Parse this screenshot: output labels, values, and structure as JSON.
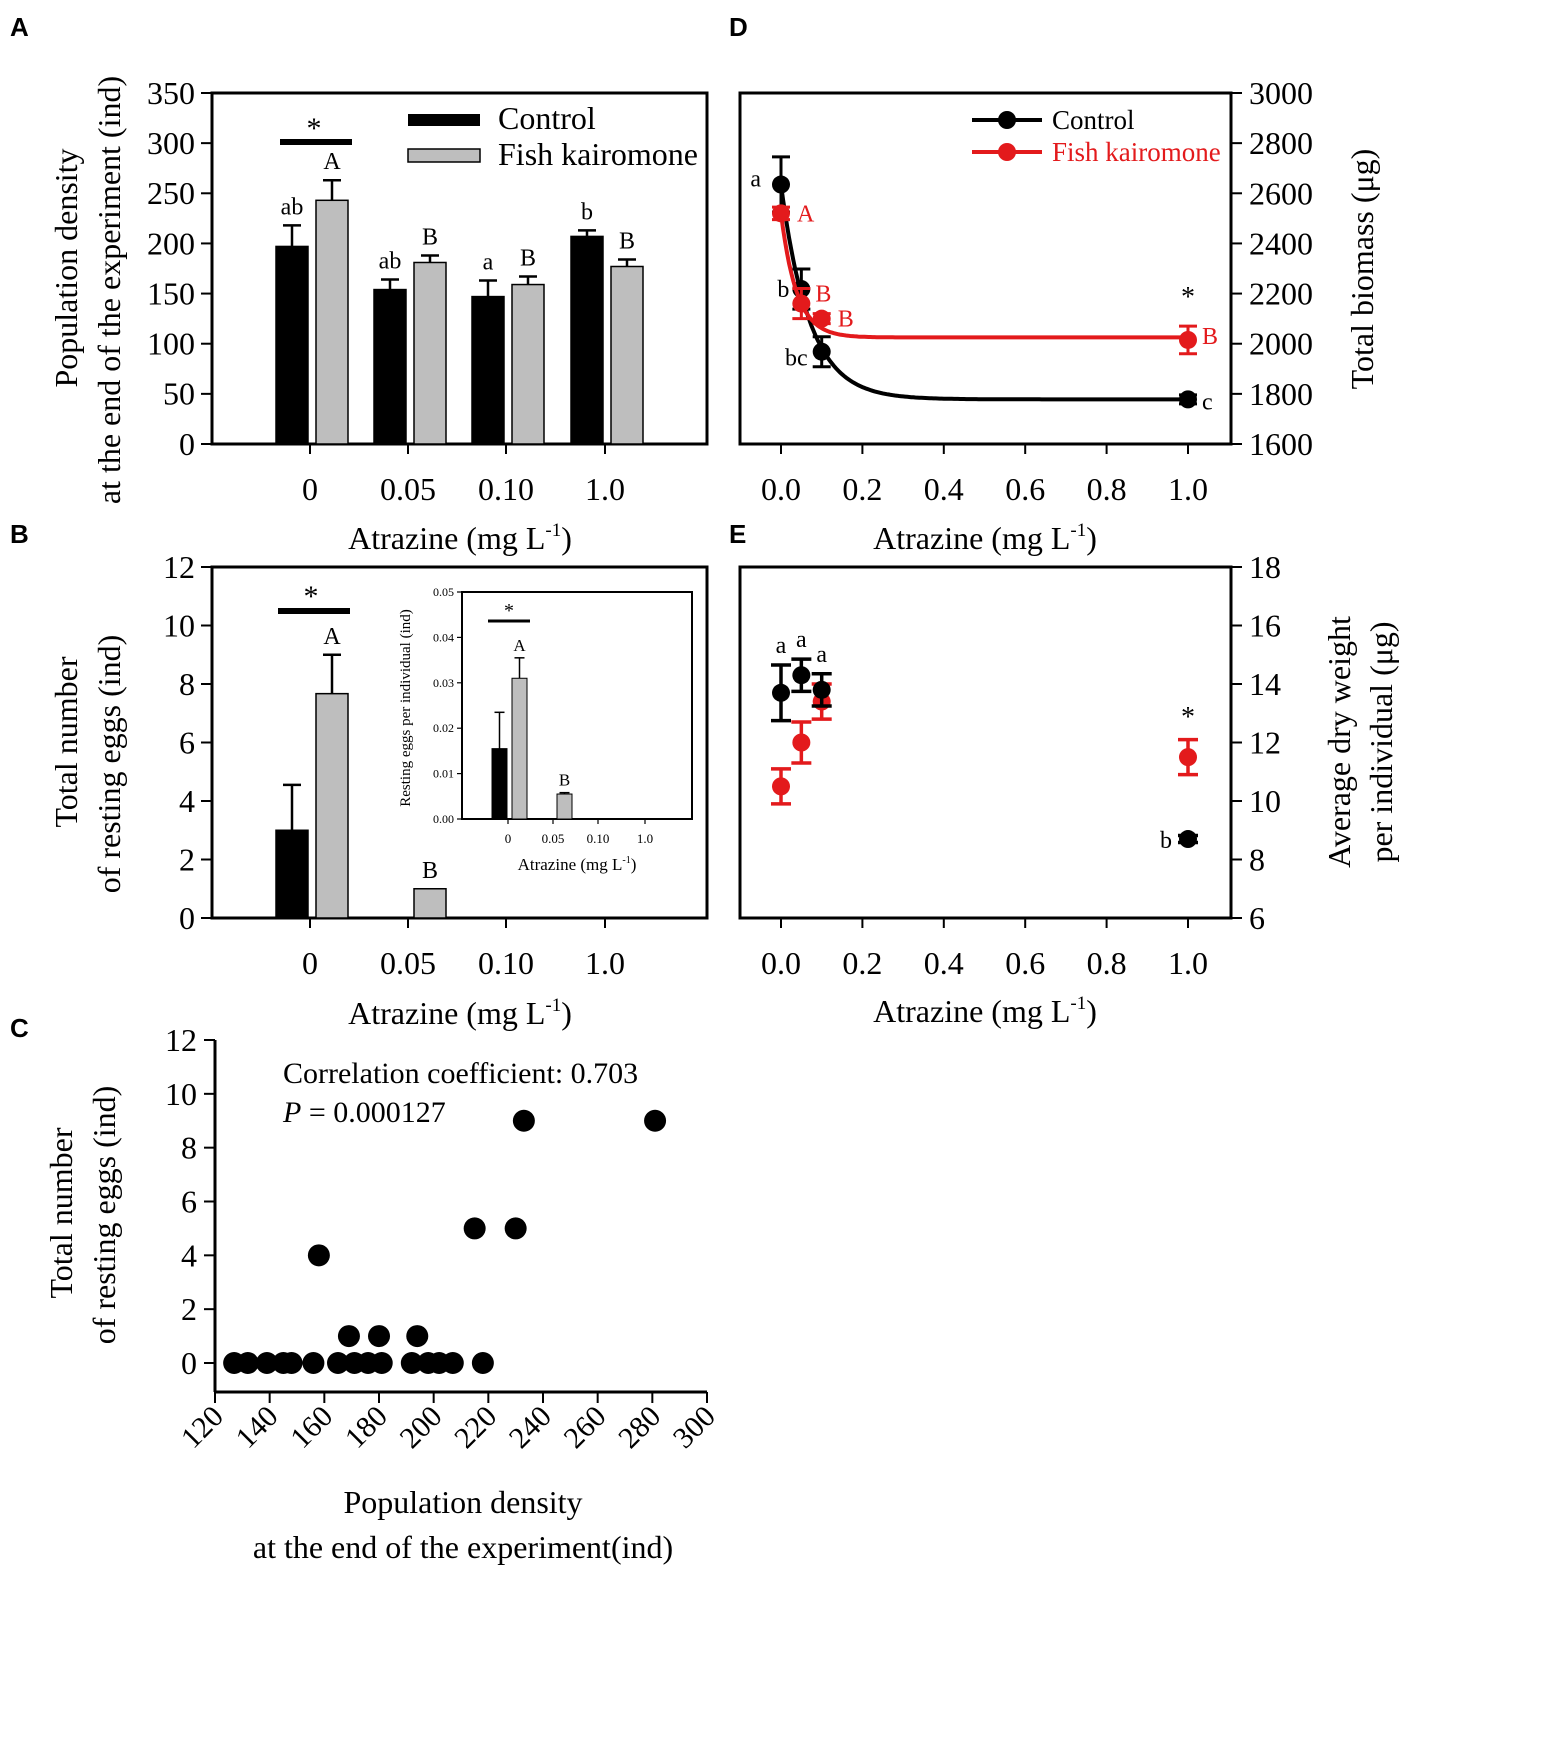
{
  "chart_data": [
    {
      "panel": "A",
      "type": "bar",
      "ylabel_line1": "Population density",
      "ylabel_line2": "at the end of the experiment (ind)",
      "xlabel_main": "Atrazine (mg L",
      "xlabel_sup": "-1",
      "xlabel_close": ")",
      "categories": [
        "0",
        "0.05",
        "0.10",
        "1.0"
      ],
      "ylim": [
        0,
        350
      ],
      "yticks": [
        "0",
        "50",
        "100",
        "150",
        "200",
        "250",
        "300",
        "350"
      ],
      "series": [
        {
          "name": "Control",
          "color": "#000000",
          "values": [
            197,
            154,
            147,
            207
          ],
          "errors": [
            21,
            10,
            16,
            6
          ],
          "letters": [
            "ab",
            "ab",
            "a",
            "b"
          ]
        },
        {
          "name": "Fish kairomone",
          "color": "#bebebe",
          "values": [
            243,
            181,
            159,
            177
          ],
          "errors": [
            20,
            7,
            8,
            7
          ],
          "letters": [
            "A",
            "B",
            "B",
            "B"
          ]
        }
      ],
      "legend": [
        "Control",
        "Fish kairomone"
      ],
      "significance": [
        {
          "category": "0",
          "mark": "*"
        }
      ]
    },
    {
      "panel": "B",
      "type": "bar",
      "ylabel_line1": "Total number",
      "ylabel_line2": "of resting eggs (ind)",
      "xlabel_main": "Atrazine (mg L",
      "xlabel_sup": "-1",
      "xlabel_close": ")",
      "categories": [
        "0",
        "0.05",
        "0.10",
        "1.0"
      ],
      "ylim": [
        0,
        12
      ],
      "yticks": [
        "0",
        "2",
        "4",
        "6",
        "8",
        "10",
        "12"
      ],
      "series": [
        {
          "name": "Control",
          "color": "#000000",
          "values": [
            3,
            0,
            0,
            0
          ],
          "errors": [
            1.55,
            0,
            0,
            0
          ],
          "letters": [
            "",
            "",
            "",
            ""
          ]
        },
        {
          "name": "Fish kairomone",
          "color": "#bebebe",
          "values": [
            7.67,
            1,
            0,
            0
          ],
          "errors": [
            1.33,
            0,
            0,
            0
          ],
          "letters": [
            "A",
            "B",
            "",
            ""
          ]
        }
      ],
      "significance": [
        {
          "category": "0",
          "mark": "*"
        }
      ],
      "inset": {
        "type": "bar",
        "ylabel": "Resting eggs per individual (ind)",
        "xlabel_main": "Atrazine (mg L",
        "xlabel_sup": "-1",
        "xlabel_close": ")",
        "categories": [
          "0",
          "0.05",
          "0.10",
          "1.0"
        ],
        "ylim": [
          0,
          0.05
        ],
        "yticks": [
          "0.00",
          "0.01",
          "0.02",
          "0.03",
          "0.04",
          "0.05"
        ],
        "series": [
          {
            "name": "Control",
            "values": [
              0.0155,
              0,
              0,
              0
            ],
            "errors": [
              0.008,
              0,
              0,
              0
            ],
            "letters": [
              "",
              "",
              "",
              ""
            ]
          },
          {
            "name": "Fish kairomone",
            "values": [
              0.031,
              0.0055,
              0,
              0
            ],
            "errors": [
              0.0045,
              0.0003,
              0,
              0
            ],
            "letters": [
              "A",
              "B",
              "",
              ""
            ]
          }
        ],
        "significance": [
          {
            "category": "0",
            "mark": "*"
          }
        ]
      }
    },
    {
      "panel": "C",
      "type": "scatter",
      "ylabel_line1": "Total number",
      "ylabel_line2": "of resting eggs (ind)",
      "xlabel_line1": "Population density",
      "xlabel_line2": "at the end of the experiment(ind)",
      "xlim": [
        120,
        300
      ],
      "ylim": [
        0,
        12
      ],
      "xticks": [
        "120",
        "140",
        "160",
        "180",
        "200",
        "220",
        "240",
        "260",
        "280",
        "300"
      ],
      "yticks": [
        "0",
        "2",
        "4",
        "6",
        "8",
        "10",
        "12"
      ],
      "annotation_line1": "Correlation coefficient: 0.703",
      "annotation_p_symbol": "P",
      "annotation_p_value": " = 0.000127",
      "points": [
        [
          127,
          0
        ],
        [
          132,
          0
        ],
        [
          139,
          0
        ],
        [
          145,
          0
        ],
        [
          148,
          0
        ],
        [
          156,
          0
        ],
        [
          158,
          4
        ],
        [
          165,
          0
        ],
        [
          169,
          1
        ],
        [
          171,
          0
        ],
        [
          176,
          0
        ],
        [
          180,
          1
        ],
        [
          181,
          0
        ],
        [
          192,
          0
        ],
        [
          194,
          1
        ],
        [
          198,
          0
        ],
        [
          202,
          0
        ],
        [
          207,
          0
        ],
        [
          215,
          5
        ],
        [
          218,
          0
        ],
        [
          230,
          5
        ],
        [
          233,
          9
        ],
        [
          281,
          9
        ]
      ]
    },
    {
      "panel": "D",
      "type": "line",
      "ylabel": "Total biomass (μg)",
      "xlabel_main": "Atrazine (mg L",
      "xlabel_sup": "-1",
      "xlabel_close": ")",
      "xlim": [
        0,
        1
      ],
      "ylim": [
        1600,
        3000
      ],
      "xticks": [
        "0.0",
        "0.2",
        "0.4",
        "0.6",
        "0.8",
        "1.0"
      ],
      "yticks": [
        "1600",
        "1800",
        "2000",
        "2200",
        "2400",
        "2600",
        "2800",
        "3000"
      ],
      "legend": [
        "Control",
        "Fish kairomone"
      ],
      "series": [
        {
          "name": "Control",
          "color": "#000000",
          "x": [
            0,
            0.05,
            0.1,
            1.0
          ],
          "y": [
            2635,
            2218,
            1968,
            1778
          ],
          "errors": [
            110,
            80,
            60,
            18
          ],
          "letters": [
            "a",
            "b",
            "bc",
            "c"
          ],
          "fit": {
            "plateau": 1778,
            "amplitude": 857,
            "rate": 14.3
          }
        },
        {
          "name": "Fish kairomone",
          "color": "#e31a1c",
          "x": [
            0,
            0.05,
            0.1,
            1.0
          ],
          "y": [
            2520,
            2160,
            2100,
            2015
          ],
          "errors": [
            25,
            60,
            20,
            55
          ],
          "letters": [
            "A",
            "B",
            "B",
            "B"
          ],
          "fit": {
            "plateau": 2025,
            "amplitude": 495,
            "rate": 26
          }
        }
      ],
      "significance": [
        {
          "x": 1.0,
          "mark": "*"
        }
      ]
    },
    {
      "panel": "E",
      "type": "scatter",
      "ylabel_line1": "Average dry weight",
      "ylabel_line2": "per individual (μg)",
      "xlabel_main": "Atrazine (mg L",
      "xlabel_sup": "-1",
      "xlabel_close": ")",
      "xlim": [
        0,
        1
      ],
      "ylim": [
        6,
        18
      ],
      "xticks": [
        "0.0",
        "0.2",
        "0.4",
        "0.6",
        "0.8",
        "1.0"
      ],
      "yticks": [
        "6",
        "8",
        "10",
        "12",
        "14",
        "16",
        "18"
      ],
      "series": [
        {
          "name": "Control",
          "color": "#000000",
          "x": [
            0,
            0.05,
            0.1,
            1.0
          ],
          "y": [
            13.7,
            14.3,
            13.8,
            8.7
          ],
          "errors": [
            0.95,
            0.55,
            0.55,
            0.12
          ],
          "letters": [
            "a",
            "a",
            "a",
            "b"
          ]
        },
        {
          "name": "Fish kairomone",
          "color": "#e31a1c",
          "x": [
            0,
            0.05,
            0.1,
            1.0
          ],
          "y": [
            10.5,
            12.0,
            13.4,
            11.5
          ],
          "errors": [
            0.6,
            0.7,
            0.6,
            0.6
          ],
          "letters": [
            "",
            "",
            "",
            ""
          ]
        }
      ],
      "significance": [
        {
          "x": 1.0,
          "mark": "*"
        }
      ]
    }
  ]
}
